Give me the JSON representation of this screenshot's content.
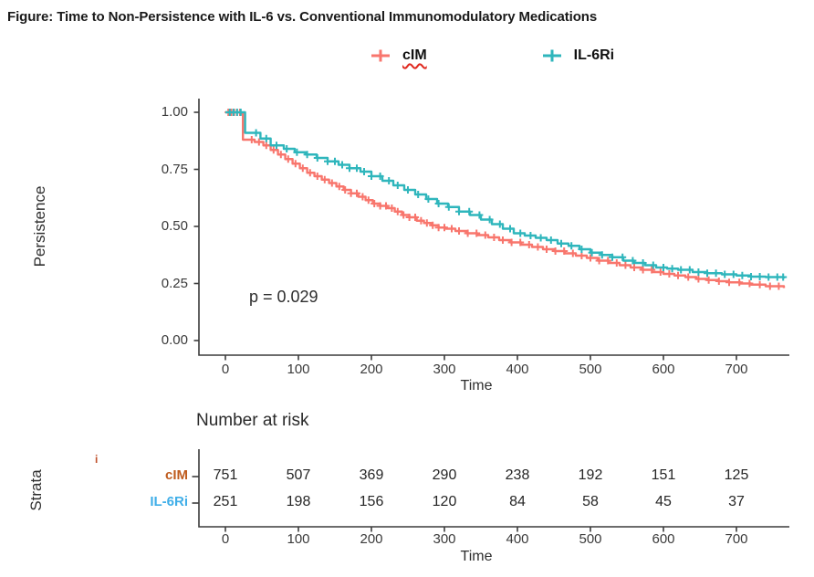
{
  "title": "Figure: Time to Non-Persistence with IL-6 vs. Conventional Immunomodulatory Medications",
  "legend": {
    "items": [
      {
        "label": "cIM",
        "color": "#F8766D",
        "misspell_underline": true
      },
      {
        "label": "IL-6Ri",
        "color": "#2FB6BC",
        "misspell_underline": false
      }
    ]
  },
  "chart_data": {
    "type": "line",
    "subtype": "kaplan-meier-step",
    "title": "",
    "xlabel": "Time",
    "ylabel": "Persistence",
    "xlim": [
      0,
      770
    ],
    "ylim": [
      0,
      1
    ],
    "x_ticks": [
      0,
      100,
      200,
      300,
      400,
      500,
      600,
      700
    ],
    "y_ticks": [
      0,
      0.25,
      0.5,
      0.75,
      1
    ],
    "y_tick_labels": [
      "0.00",
      "0.25",
      "0.50",
      "0.75",
      "1.00"
    ],
    "grid": false,
    "legend_position": "top",
    "p_value_label": "p = 0.029",
    "axis_color": "#3c3c3c",
    "series": [
      {
        "name": "cIM",
        "color": "#F8766D",
        "steps": [
          [
            0,
            1.0
          ],
          [
            22,
            0.995
          ],
          [
            24,
            0.88
          ],
          [
            40,
            0.87
          ],
          [
            52,
            0.855
          ],
          [
            62,
            0.835
          ],
          [
            72,
            0.815
          ],
          [
            82,
            0.795
          ],
          [
            92,
            0.775
          ],
          [
            102,
            0.755
          ],
          [
            112,
            0.735
          ],
          [
            122,
            0.72
          ],
          [
            132,
            0.705
          ],
          [
            142,
            0.69
          ],
          [
            152,
            0.675
          ],
          [
            162,
            0.66
          ],
          [
            172,
            0.645
          ],
          [
            182,
            0.63
          ],
          [
            192,
            0.615
          ],
          [
            202,
            0.6
          ],
          [
            212,
            0.59
          ],
          [
            222,
            0.58
          ],
          [
            232,
            0.565
          ],
          [
            242,
            0.55
          ],
          [
            252,
            0.54
          ],
          [
            262,
            0.525
          ],
          [
            272,
            0.515
          ],
          [
            282,
            0.505
          ],
          [
            292,
            0.495
          ],
          [
            302,
            0.49
          ],
          [
            315,
            0.48
          ],
          [
            330,
            0.47
          ],
          [
            345,
            0.462
          ],
          [
            360,
            0.452
          ],
          [
            375,
            0.44
          ],
          [
            390,
            0.43
          ],
          [
            405,
            0.42
          ],
          [
            420,
            0.41
          ],
          [
            435,
            0.4
          ],
          [
            450,
            0.392
          ],
          [
            465,
            0.382
          ],
          [
            480,
            0.372
          ],
          [
            495,
            0.362
          ],
          [
            510,
            0.35
          ],
          [
            525,
            0.34
          ],
          [
            540,
            0.33
          ],
          [
            555,
            0.32
          ],
          [
            570,
            0.31
          ],
          [
            585,
            0.3
          ],
          [
            600,
            0.292
          ],
          [
            615,
            0.285
          ],
          [
            630,
            0.278
          ],
          [
            645,
            0.27
          ],
          [
            660,
            0.265
          ],
          [
            675,
            0.26
          ],
          [
            690,
            0.255
          ],
          [
            705,
            0.25
          ],
          [
            720,
            0.245
          ],
          [
            740,
            0.238
          ],
          [
            765,
            0.23
          ]
        ],
        "censor_times": [
          4,
          8,
          12,
          16,
          20,
          36,
          46,
          56,
          66,
          76,
          86,
          96,
          106,
          116,
          126,
          136,
          146,
          156,
          164,
          172,
          180,
          188,
          196,
          204,
          212,
          220,
          228,
          236,
          244,
          252,
          260,
          268,
          276,
          284,
          292,
          300,
          310,
          320,
          332,
          344,
          356,
          368,
          380,
          392,
          404,
          416,
          428,
          440,
          452,
          464,
          476,
          488,
          500,
          512,
          524,
          536,
          548,
          560,
          572,
          584,
          596,
          608,
          620,
          634,
          648,
          662,
          676,
          690,
          704,
          718,
          732,
          746,
          758
        ]
      },
      {
        "name": "IL-6Ri",
        "color": "#2FB6BC",
        "steps": [
          [
            0,
            1.0
          ],
          [
            27,
            0.91
          ],
          [
            48,
            0.885
          ],
          [
            62,
            0.855
          ],
          [
            80,
            0.84
          ],
          [
            95,
            0.825
          ],
          [
            110,
            0.815
          ],
          [
            125,
            0.8
          ],
          [
            140,
            0.785
          ],
          [
            155,
            0.77
          ],
          [
            170,
            0.755
          ],
          [
            185,
            0.74
          ],
          [
            200,
            0.72
          ],
          [
            215,
            0.7
          ],
          [
            230,
            0.68
          ],
          [
            245,
            0.66
          ],
          [
            260,
            0.64
          ],
          [
            275,
            0.62
          ],
          [
            290,
            0.6
          ],
          [
            305,
            0.585
          ],
          [
            320,
            0.565
          ],
          [
            335,
            0.55
          ],
          [
            350,
            0.53
          ],
          [
            365,
            0.51
          ],
          [
            380,
            0.49
          ],
          [
            395,
            0.47
          ],
          [
            410,
            0.46
          ],
          [
            425,
            0.45
          ],
          [
            440,
            0.44
          ],
          [
            455,
            0.425
          ],
          [
            470,
            0.415
          ],
          [
            485,
            0.4
          ],
          [
            500,
            0.385
          ],
          [
            515,
            0.375
          ],
          [
            530,
            0.365
          ],
          [
            545,
            0.35
          ],
          [
            560,
            0.34
          ],
          [
            575,
            0.33
          ],
          [
            590,
            0.32
          ],
          [
            605,
            0.315
          ],
          [
            620,
            0.31
          ],
          [
            640,
            0.3
          ],
          [
            660,
            0.295
          ],
          [
            680,
            0.29
          ],
          [
            700,
            0.285
          ],
          [
            720,
            0.28
          ],
          [
            740,
            0.278
          ],
          [
            765,
            0.272
          ]
        ],
        "censor_times": [
          6,
          11,
          16,
          21,
          42,
          56,
          70,
          84,
          98,
          112,
          126,
          140,
          150,
          160,
          170,
          180,
          190,
          200,
          212,
          224,
          236,
          250,
          264,
          278,
          292,
          306,
          320,
          334,
          348,
          362,
          376,
          390,
          404,
          418,
          432,
          446,
          460,
          474,
          488,
          502,
          516,
          530,
          544,
          558,
          572,
          586,
          600,
          612,
          624,
          636,
          648,
          660,
          672,
          684,
          696,
          708,
          720,
          732,
          744,
          756,
          764
        ]
      }
    ]
  },
  "risk_table": {
    "header": "Number at risk",
    "strata_label": "Strata",
    "strata_note": "i",
    "xlabel": "Time",
    "x_ticks": [
      0,
      100,
      200,
      300,
      400,
      500,
      600,
      700
    ],
    "rows": [
      {
        "label": "cIM",
        "label_color": "#BF5B1D",
        "values": [
          751,
          507,
          369,
          290,
          238,
          192,
          151,
          125
        ]
      },
      {
        "label": "IL-6Ri",
        "label_color": "#3FAEE8",
        "values": [
          251,
          198,
          156,
          120,
          84,
          58,
          45,
          37
        ]
      }
    ]
  }
}
